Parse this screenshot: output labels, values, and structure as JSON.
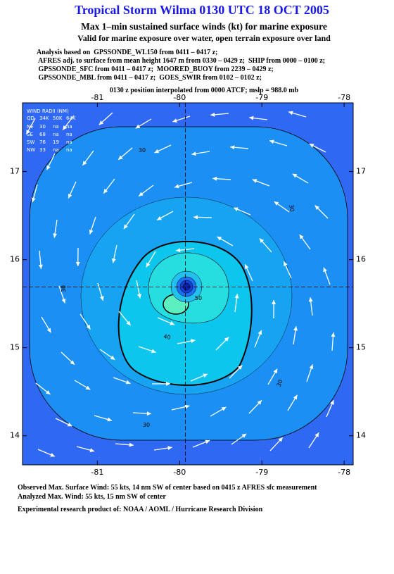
{
  "header": {
    "title": "Tropical Storm Wilma 0130 UTC 18 OCT 2005",
    "subtitle": "Max 1–min sustained surface winds (kt) for marine exposure",
    "validity": "Valid for marine exposure over water, open terrain exposure over land",
    "analysis": [
      "Analysis based on  GPSSONDE_WL150 from 0411 – 0417 z;",
      " AFRES adj. to surface from mean height 1647 m from 0330 – 0429 z;  SHIP from 0000 – 0100 z;",
      " GPSSONDE_SFC from 0411 – 0417 z;  MOORED_BUOY from 2239 – 0429 z;",
      " GPSSONDE_MBL from 0411 – 0417 z;  GOES_SWIR from 0102 – 0102 z;"
    ],
    "position": "0130 z position interpolated from 0000 ATCF; mslp = 988.0 mb"
  },
  "map": {
    "xlim": [
      -81.91,
      -77.89
    ],
    "ylim": [
      13.67,
      17.78
    ],
    "xticks": [
      -81,
      -80,
      -79,
      -78
    ],
    "yticks": [
      14,
      15,
      16,
      17
    ],
    "center": {
      "lon": -79.93,
      "lat": 15.69
    },
    "wind_radii": {
      "title": "WIND RADII (NM)",
      "columns": [
        "QD",
        "34K",
        "50K",
        "64K"
      ],
      "rows": [
        [
          "NE",
          "30",
          "na",
          "na"
        ],
        [
          "SE",
          "68",
          "na",
          "na"
        ],
        [
          "SW",
          "76",
          "19",
          "na"
        ],
        [
          "NW",
          "33",
          "na",
          "na"
        ]
      ]
    },
    "contour_labels": [
      "30",
      "30",
      "30",
      "30",
      "30",
      "40",
      "50"
    ]
  },
  "footer": [
    "Observed Max. Surface Wind: 55 kts, 14 nm SW of center based on 0415 z AFRES sfc measurement",
    "Analyzed Max. Wind: 55 kts, 15 nm SW of center",
    "Experimental research product of:  NOAA / AOML / Hurricane Research Division"
  ]
}
